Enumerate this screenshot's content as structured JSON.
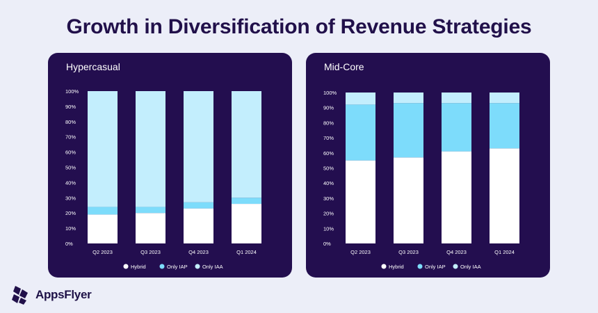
{
  "title": "Growth in Diversification of Revenue Strategies",
  "brand": {
    "name": "AppsFlyer",
    "logo_icon": "appsflyer-logo-icon"
  },
  "colors": {
    "Hybrid": "#ffffff",
    "Only IAP": "#7ddcfb",
    "Only IAA": "#c3eefd",
    "panel_bg": "#230e4f",
    "title": "#21104a"
  },
  "chart_data": [
    {
      "type": "bar",
      "stacked": true,
      "title": "Hypercasual",
      "categories": [
        "Q2 2023",
        "Q3 2023",
        "Q4 2023",
        "Q1 2024"
      ],
      "series": [
        {
          "name": "Hybrid",
          "values": [
            19,
            20,
            23,
            26
          ]
        },
        {
          "name": "Only IAP",
          "values": [
            5,
            4,
            4,
            4
          ]
        },
        {
          "name": "Only IAA",
          "values": [
            76,
            76,
            73,
            70
          ]
        }
      ],
      "yticks": [
        "0%",
        "10%",
        "20%",
        "30%",
        "40%",
        "50%",
        "60%",
        "70%",
        "80%",
        "90%",
        "100%"
      ],
      "ylim": [
        0,
        100
      ],
      "grid": false,
      "legend_position": "bottom"
    },
    {
      "type": "bar",
      "stacked": true,
      "title": "Mid-Core",
      "categories": [
        "Q2 2023",
        "Q3 2023",
        "Q4 2023",
        "Q1 2024"
      ],
      "series": [
        {
          "name": "Hybrid",
          "values": [
            55,
            57,
            61,
            63
          ]
        },
        {
          "name": "Only IAP",
          "values": [
            37,
            36,
            32,
            30
          ]
        },
        {
          "name": "Only IAA",
          "values": [
            8,
            7,
            7,
            7
          ]
        }
      ],
      "yticks": [
        "0%",
        "10%",
        "20%",
        "30%",
        "40%",
        "50%",
        "60%",
        "70%",
        "80%",
        "90%",
        "100%"
      ],
      "ylim": [
        0,
        100
      ],
      "grid": false,
      "legend_position": "bottom"
    }
  ]
}
